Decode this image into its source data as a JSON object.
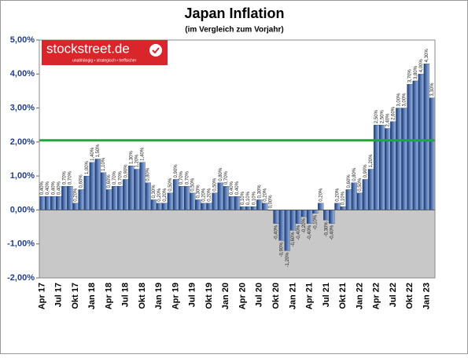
{
  "chart_data": {
    "type": "bar",
    "title": "Japan Inflation",
    "subtitle": "(im Vergleich zum Vorjahr)",
    "logo": {
      "name": "stockstreet.de",
      "tagline": "unabhängig • strategisch • treffsicher"
    },
    "categories": [
      "Apr 17",
      null,
      null,
      "Jul 17",
      null,
      null,
      "Okt 17",
      null,
      null,
      "Jan 18",
      null,
      null,
      "Apr 18",
      null,
      null,
      "Jul 18",
      null,
      null,
      "Okt 18",
      null,
      null,
      "Jan 19",
      null,
      null,
      "Apr 19",
      null,
      null,
      "Jul 19",
      null,
      null,
      "Okt 19",
      null,
      null,
      "Jan 20",
      null,
      null,
      "Apr 20",
      null,
      null,
      "Jul 20",
      null,
      null,
      "Okt 20",
      null,
      null,
      "Jan 21",
      null,
      null,
      "Apr 21",
      null,
      null,
      "Jul 21",
      null,
      null,
      "Okt 21",
      null,
      null,
      "Jan 22",
      null,
      null,
      "Apr 22",
      null,
      null,
      "Jul 22",
      null,
      null,
      "Okt 22",
      null,
      null,
      "Jan 23",
      null
    ],
    "values": [
      0.4,
      0.4,
      0.4,
      0.4,
      0.7,
      0.7,
      0.2,
      0.6,
      1.0,
      1.4,
      1.5,
      1.1,
      0.6,
      0.7,
      0.7,
      0.9,
      1.3,
      1.2,
      1.4,
      0.8,
      0.3,
      0.2,
      0.2,
      0.5,
      0.9,
      0.7,
      0.7,
      0.5,
      0.3,
      0.2,
      0.2,
      0.5,
      0.8,
      0.7,
      0.4,
      0.4,
      0.1,
      0.1,
      0.1,
      0.3,
      0.2,
      0.0,
      -0.4,
      -0.9,
      -1.2,
      -0.6,
      -0.4,
      -0.2,
      -0.4,
      -0.1,
      0.2,
      -0.3,
      -0.4,
      0.2,
      0.1,
      0.6,
      0.8,
      0.5,
      0.9,
      1.2,
      2.5,
      2.5,
      2.4,
      2.6,
      3.0,
      3.0,
      3.7,
      3.8,
      4.0,
      4.3,
      3.3
    ],
    "value_labels": [
      "0,40%",
      "0,40%",
      "0,40%",
      "0,40%",
      "0,70%",
      "0,70%",
      "0,20%",
      "0,60%",
      "1,00%",
      "1,40%",
      "1,50%",
      "1,10%",
      "0,60%",
      "0,70%",
      "0,70%",
      "0,90%",
      "1,30%",
      "1,20%",
      "1,40%",
      "0,80%",
      "0,30%",
      "0,20%",
      "0,20%",
      "0,50%",
      "0,90%",
      "0,70%",
      "0,70%",
      "0,50%",
      "0,30%",
      "0,20%",
      "0,20%",
      "0,50%",
      "0,80%",
      "0,70%",
      "0,40%",
      "0,40%",
      "0,10%",
      "0,10%",
      "0,10%",
      "0,30%",
      "0,20%",
      "0,00%",
      "-0,40%",
      "-0,90%",
      "-1,20%",
      "-0,60%",
      "-0,40%",
      "-0,20%",
      "-0,40%",
      "-0,10%",
      "0,20%",
      "-0,30%",
      "-0,40%",
      "0,20%",
      "0,10%",
      "0,60%",
      "0,80%",
      "0,50%",
      "0,90%",
      "1,20%",
      "2,50%",
      "2,50%",
      "2,40%",
      "2,60%",
      "3,00%",
      "3,00%",
      "3,70%",
      "3,80%",
      "4,00%",
      "4,30%",
      "3,30%"
    ],
    "color": "#2f5496",
    "reference_line": 2.05,
    "reference_color": "#1fa83c",
    "ylim": [
      -2,
      5
    ],
    "yticks": [
      {
        "value": -2,
        "label": "-2,00%"
      },
      {
        "value": -1,
        "label": "-1,00%"
      },
      {
        "value": 0,
        "label": "0,00%"
      },
      {
        "value": 1,
        "label": "1,00%"
      },
      {
        "value": 2,
        "label": "2,00%"
      },
      {
        "value": 3,
        "label": "3,00%"
      },
      {
        "value": 4,
        "label": "4,00%"
      },
      {
        "value": 5,
        "label": "5,00%"
      }
    ],
    "grid": false
  }
}
